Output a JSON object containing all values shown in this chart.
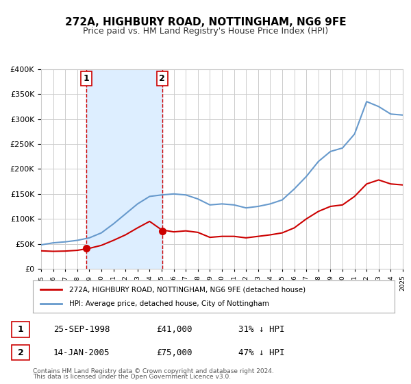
{
  "title": "272A, HIGHBURY ROAD, NOTTINGHAM, NG6 9FE",
  "subtitle": "Price paid vs. HM Land Registry's House Price Index (HPI)",
  "legend_line1": "272A, HIGHBURY ROAD, NOTTINGHAM, NG6 9FE (detached house)",
  "legend_line2": "HPI: Average price, detached house, City of Nottingham",
  "footer1": "Contains HM Land Registry data © Crown copyright and database right 2024.",
  "footer2": "This data is licensed under the Open Government Licence v3.0.",
  "sale1_label": "1",
  "sale1_date": "25-SEP-1998",
  "sale1_price": "£41,000",
  "sale1_hpi": "31% ↓ HPI",
  "sale2_label": "2",
  "sale2_date": "14-JAN-2005",
  "sale2_price": "£75,000",
  "sale2_hpi": "47% ↓ HPI",
  "sale1_x": 1998.73,
  "sale1_y": 41000,
  "sale2_x": 2005.04,
  "sale2_y": 75000,
  "red_color": "#cc0000",
  "blue_color": "#6699cc",
  "shade_color": "#ddeeff",
  "grid_color": "#cccccc",
  "bg_color": "#ffffff",
  "ylim": [
    0,
    400000
  ],
  "xlim": [
    1995,
    2025
  ],
  "hpi_years": [
    1995,
    1996,
    1997,
    1998,
    1999,
    2000,
    2001,
    2002,
    2003,
    2004,
    2005,
    2006,
    2007,
    2008,
    2009,
    2010,
    2011,
    2012,
    2013,
    2014,
    2015,
    2016,
    2017,
    2018,
    2019,
    2020,
    2021,
    2022,
    2023,
    2024,
    2025
  ],
  "hpi_values": [
    48000,
    52000,
    54000,
    57000,
    62000,
    72000,
    90000,
    110000,
    130000,
    145000,
    148000,
    150000,
    148000,
    140000,
    128000,
    130000,
    128000,
    122000,
    125000,
    130000,
    138000,
    160000,
    185000,
    215000,
    235000,
    242000,
    270000,
    335000,
    325000,
    310000,
    308000
  ],
  "red_years": [
    1995,
    1996,
    1997,
    1998,
    1999,
    2000,
    2001,
    2002,
    2003,
    2004,
    2005,
    2006,
    2007,
    2008,
    2009,
    2010,
    2011,
    2012,
    2013,
    2014,
    2015,
    2016,
    2017,
    2018,
    2019,
    2020,
    2021,
    2022,
    2023,
    2024,
    2025
  ],
  "red_values": [
    36000,
    35000,
    35500,
    37000,
    41000,
    47000,
    57000,
    68000,
    82000,
    95000,
    78000,
    74000,
    76000,
    73000,
    63000,
    65000,
    65000,
    62000,
    65000,
    68000,
    72000,
    82000,
    100000,
    115000,
    125000,
    128000,
    145000,
    170000,
    178000,
    170000,
    168000
  ]
}
